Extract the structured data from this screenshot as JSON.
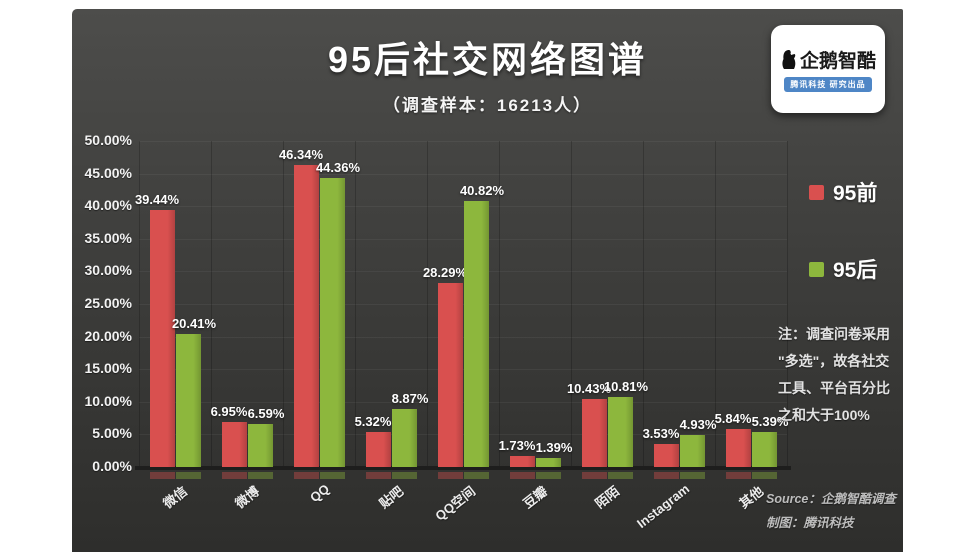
{
  "page": {
    "title": "95后社交网络图谱",
    "subtitle": "（调查样本：16213人）"
  },
  "logo": {
    "name": "企鹅智酷",
    "tagline": "腾讯科技 研究出品"
  },
  "legend": [
    {
      "label": "95前",
      "color": "#d9504f"
    },
    {
      "label": "95后",
      "color": "#8db73d"
    }
  ],
  "note_lines": [
    "注：调查问卷采用",
    "\"多选\"，故各社交",
    "工具、平台百分比",
    "之和大于100%"
  ],
  "source_lines": [
    "Source：企鹅智酷调查",
    "制图：腾讯科技"
  ],
  "chart_data": {
    "type": "bar",
    "title": "95后社交网络图谱",
    "subtitle": "（调查样本：16213人）",
    "categories": [
      "微信",
      "微博",
      "QQ",
      "贴吧",
      "QQ空间",
      "豆瓣",
      "陌陌",
      "Instagram",
      "其他"
    ],
    "series": [
      {
        "name": "95前",
        "color": "#d9504f",
        "values": [
          39.44,
          6.95,
          46.34,
          5.32,
          28.29,
          1.73,
          10.43,
          3.53,
          5.84
        ]
      },
      {
        "name": "95后",
        "color": "#8db73d",
        "values": [
          20.41,
          6.59,
          44.36,
          8.87,
          40.82,
          1.39,
          10.81,
          4.93,
          5.39
        ]
      }
    ],
    "ylim": [
      0,
      50
    ],
    "ytick_step": 5,
    "yticks": [
      "50.00%",
      "45.00%",
      "40.00%",
      "35.00%",
      "30.00%",
      "25.00%",
      "20.00%",
      "15.00%",
      "10.00%",
      "5.00%",
      "0.00%"
    ],
    "xlabel": "",
    "ylabel": "",
    "grid": true,
    "legend_position": "right"
  }
}
